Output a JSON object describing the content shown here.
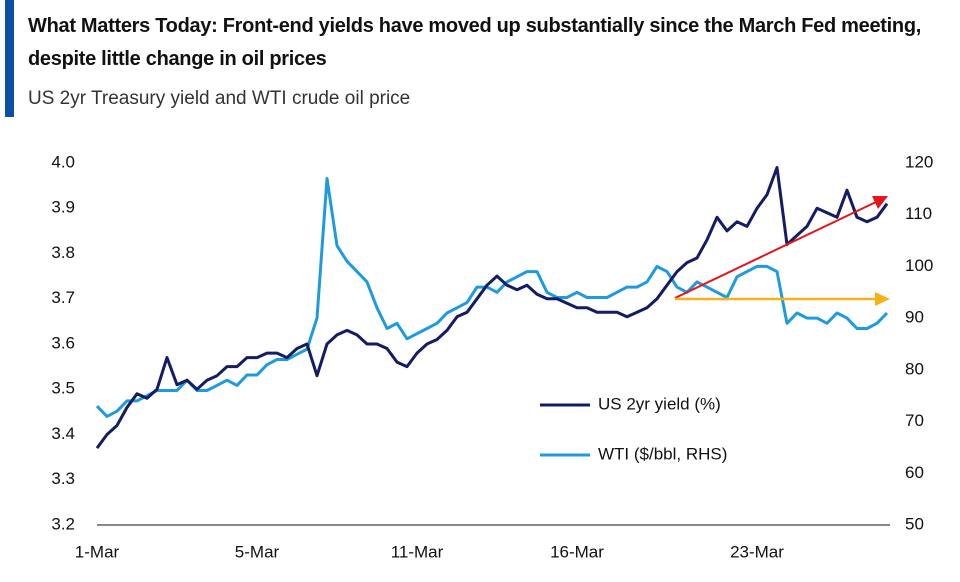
{
  "chart_data": {
    "type": "line",
    "title": "What Matters Today: Front-end yields have moved up substantially since the March Fed meeting, despite little change in oil prices",
    "subtitle": "US 2yr Treasury yield and WTI crude oil price",
    "categories": [
      "1-Mar",
      null,
      null,
      null,
      null,
      null,
      null,
      null,
      null,
      null,
      null,
      null,
      null,
      null,
      null,
      null,
      "5-Mar",
      null,
      null,
      null,
      null,
      null,
      null,
      null,
      null,
      null,
      null,
      null,
      null,
      null,
      null,
      null,
      "11-Mar",
      null,
      null,
      null,
      null,
      null,
      null,
      null,
      null,
      null,
      null,
      null,
      null,
      null,
      null,
      null,
      "16-Mar",
      null,
      null,
      null,
      null,
      null,
      null,
      null,
      null,
      null,
      null,
      null,
      null,
      null,
      null,
      null,
      null,
      null,
      "23-Mar",
      null,
      null,
      null,
      null,
      null,
      null,
      null,
      null,
      null,
      null,
      null,
      null,
      null
    ],
    "series": [
      {
        "name": "US 2yr yield (%)",
        "color": "#131c64",
        "axis": "y",
        "values": [
          3.37,
          3.4,
          3.42,
          3.46,
          3.49,
          3.48,
          3.5,
          3.57,
          3.51,
          3.52,
          3.5,
          3.52,
          3.53,
          3.55,
          3.55,
          3.57,
          3.57,
          3.58,
          3.58,
          3.57,
          3.59,
          3.6,
          3.53,
          3.6,
          3.62,
          3.63,
          3.62,
          3.6,
          3.6,
          3.59,
          3.56,
          3.55,
          3.58,
          3.6,
          3.61,
          3.63,
          3.66,
          3.67,
          3.7,
          3.73,
          3.75,
          3.73,
          3.72,
          3.73,
          3.71,
          3.7,
          3.7,
          3.69,
          3.68,
          3.68,
          3.67,
          3.67,
          3.67,
          3.66,
          3.67,
          3.68,
          3.7,
          3.73,
          3.76,
          3.78,
          3.79,
          3.83,
          3.88,
          3.85,
          3.87,
          3.86,
          3.9,
          3.93,
          3.99,
          3.82,
          3.84,
          3.86,
          3.9,
          3.89,
          3.88,
          3.94,
          3.88,
          3.87,
          3.88,
          3.91
        ]
      },
      {
        "name": "WTI ($/bbl, RHS)",
        "color": "#1e9be0",
        "axis": "y2",
        "values": [
          73,
          71,
          72,
          74,
          74,
          75,
          76,
          76,
          76,
          78,
          76,
          76,
          77,
          78,
          77,
          79,
          79,
          81,
          82,
          82,
          83,
          84,
          90,
          117,
          104,
          101,
          99,
          97,
          92,
          88,
          89,
          86,
          87,
          88,
          89,
          91,
          92,
          93,
          96,
          96,
          95,
          97,
          98,
          99,
          99,
          95,
          94,
          94,
          95,
          94,
          94,
          94,
          95,
          96,
          96,
          97,
          100,
          99,
          96,
          95,
          97,
          96,
          95,
          94,
          98,
          99,
          100,
          100,
          99,
          89,
          91,
          90,
          90,
          89,
          91,
          90,
          88,
          88,
          89,
          91
        ]
      }
    ],
    "ylim": [
      3.2,
      4.0
    ],
    "yticks": [
      3.2,
      3.3,
      3.4,
      3.5,
      3.6,
      3.7,
      3.8,
      3.9,
      {
        "value": 4.0,
        "label": "4.0"
      }
    ],
    "y2lim": [
      50,
      120
    ],
    "y2ticks": [
      50,
      60,
      70,
      80,
      90,
      100,
      110,
      120
    ]
  }
}
